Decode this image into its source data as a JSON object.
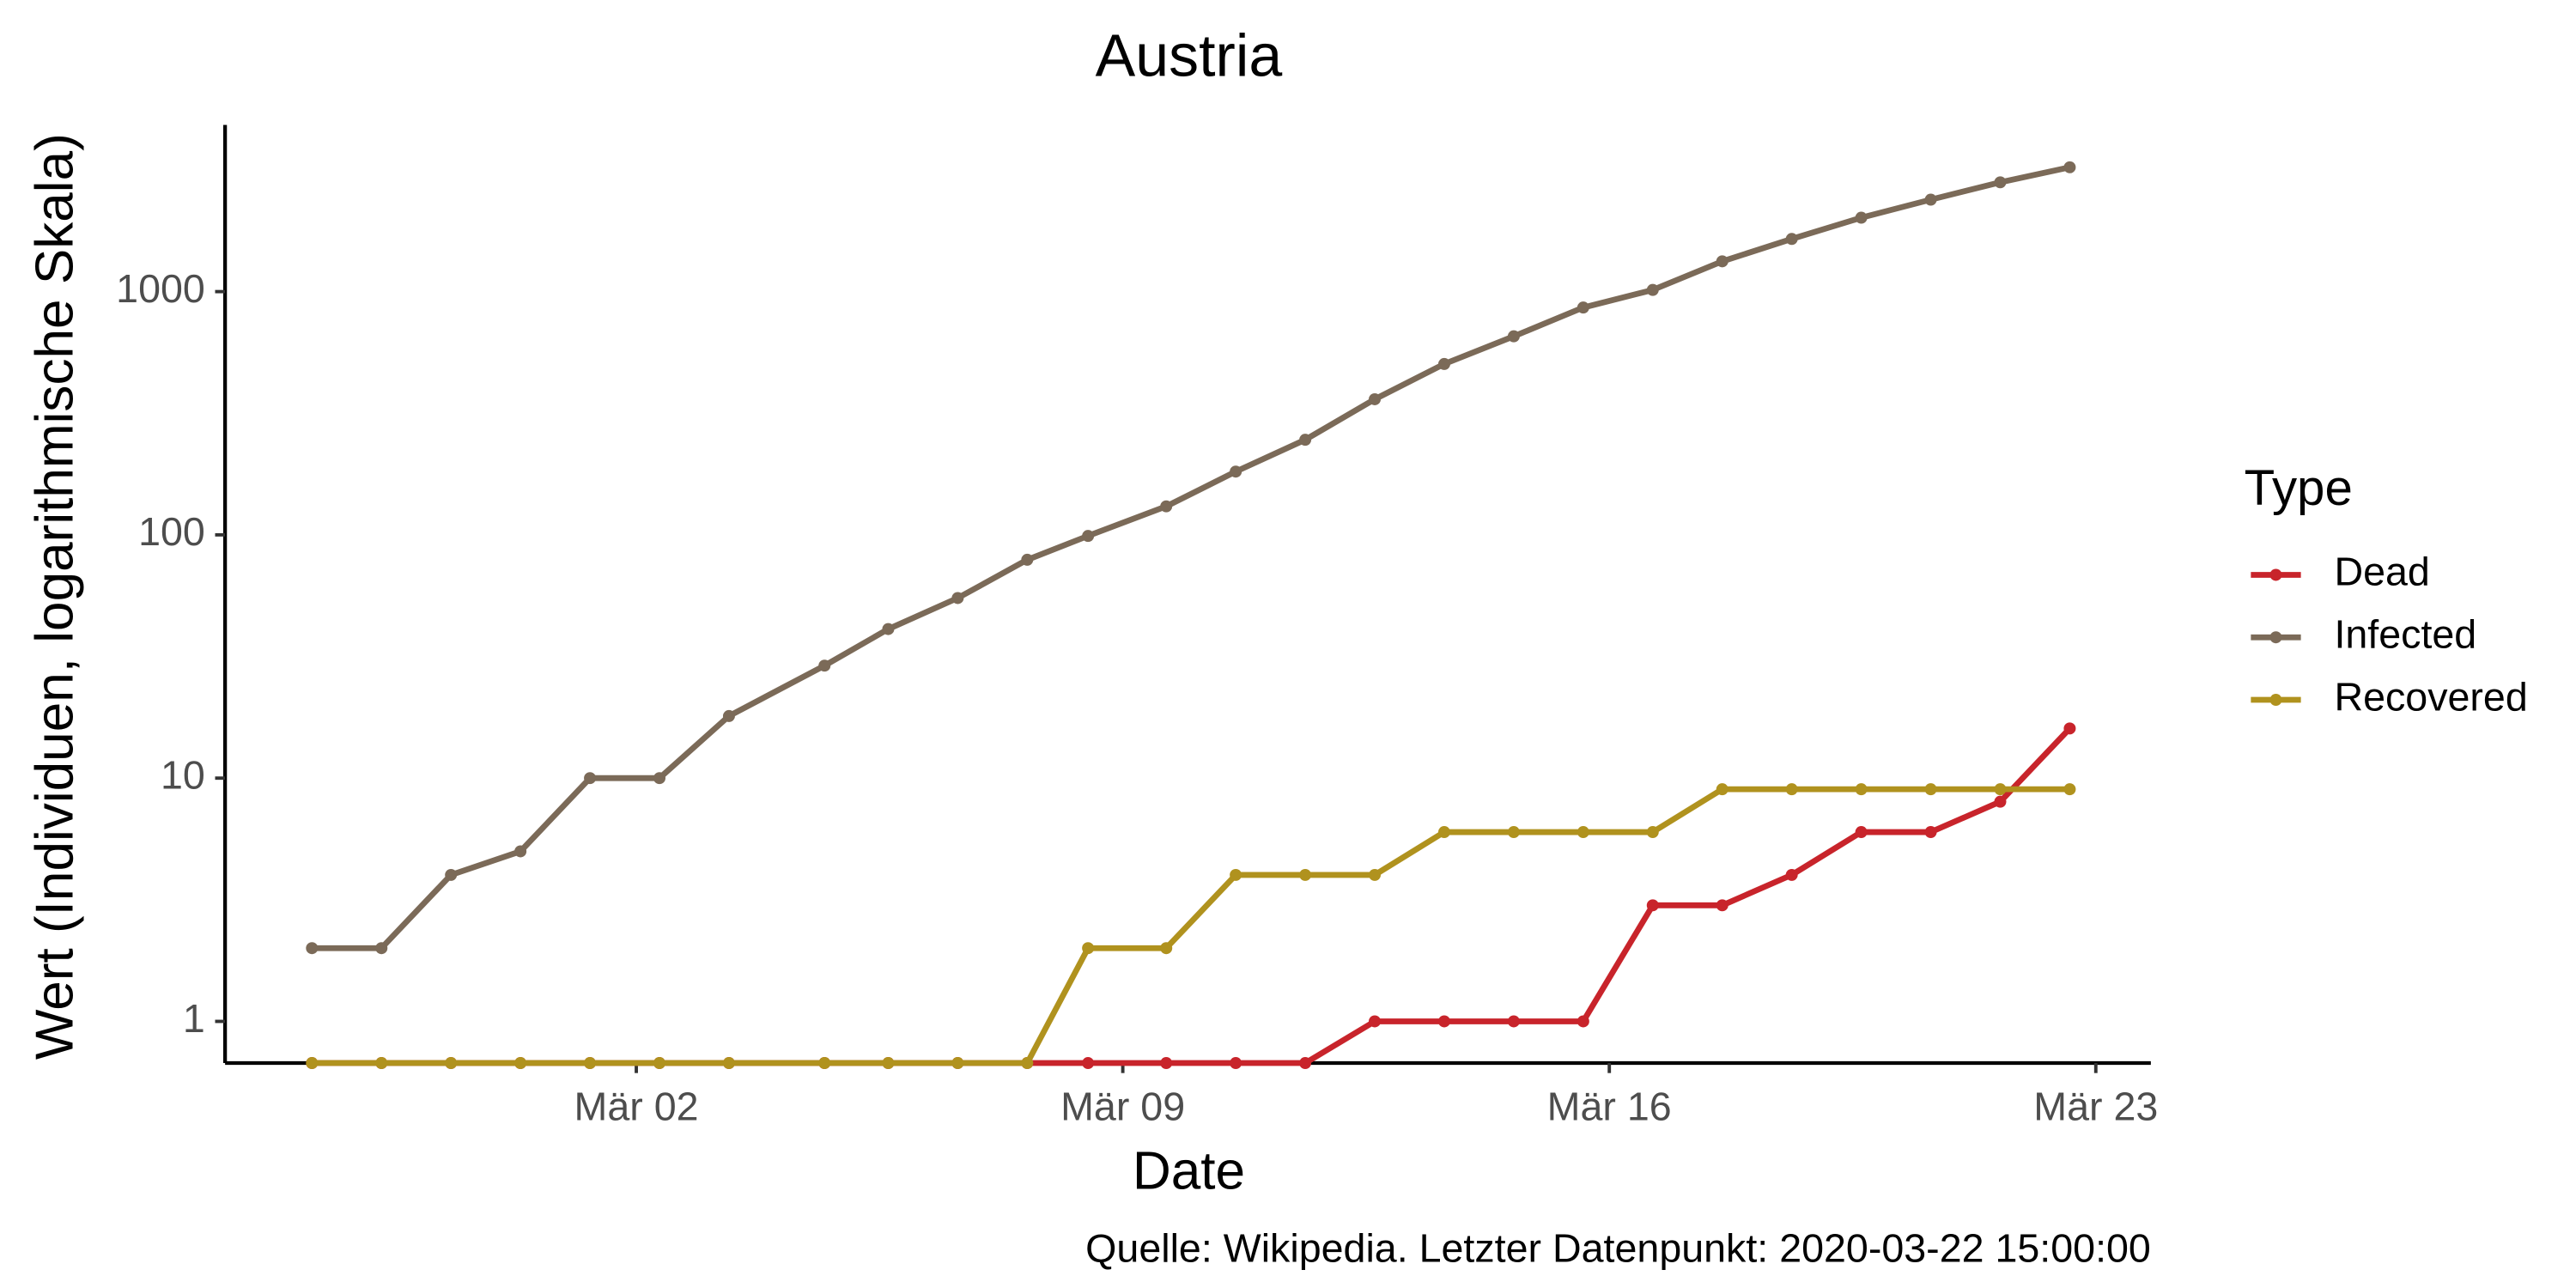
{
  "chart_data": {
    "type": "line",
    "title": "Austria",
    "x_label": "Date",
    "y_label": "Wert (Individuen, logarithmische Skala)",
    "caption": "Quelle: Wikipedia. Letzter Datenpunkt: 2020-03-22 15:00:00",
    "legend_title": "Type",
    "legend_position": "right",
    "log_y": true,
    "grid": false,
    "x": [
      "2020-02-26 08:00",
      "2020-02-27 08:00",
      "2020-02-28 08:00",
      "2020-02-29 08:00",
      "2020-03-01 08:00",
      "2020-03-02 08:00",
      "2020-03-03 08:00",
      "2020-03-04 17:00",
      "2020-03-05 15:00",
      "2020-03-06 15:00",
      "2020-03-07 15:00",
      "2020-03-08 12:00",
      "2020-03-09 15:00",
      "2020-03-10 15:00",
      "2020-03-11 15:00",
      "2020-03-12 15:00",
      "2020-03-13 15:00",
      "2020-03-14 15:00",
      "2020-03-15 15:00",
      "2020-03-16 15:00",
      "2020-03-17 15:00",
      "2020-03-18 15:00",
      "2020-03-19 15:00",
      "2020-03-20 15:00",
      "2020-03-21 15:00",
      "2020-03-22 15:00"
    ],
    "series": [
      {
        "name": "Dead",
        "color": "#c8242b",
        "values": [
          0,
          0,
          0,
          0,
          0,
          0,
          0,
          0,
          0,
          0,
          0,
          0,
          0,
          0,
          0,
          1,
          1,
          1,
          1,
          3,
          3,
          4,
          6,
          6,
          8,
          16
        ]
      },
      {
        "name": "Infected",
        "color": "#7b6a58",
        "values": [
          2,
          2,
          4,
          5,
          10,
          10,
          18,
          29,
          41,
          55,
          79,
          99,
          131,
          182,
          246,
          361,
          504,
          655,
          860,
          1016,
          1332,
          1646,
          2013,
          2388,
          2814,
          3244
        ]
      },
      {
        "name": "Recovered",
        "color": "#b0921e",
        "values": [
          0,
          0,
          0,
          0,
          0,
          0,
          0,
          0,
          0,
          0,
          0,
          2,
          2,
          4,
          4,
          4,
          6,
          6,
          6,
          6,
          9,
          9,
          9,
          9,
          9,
          9
        ]
      }
    ],
    "xlim": [
      "2020-02-25 02:00",
      "2020-03-23 19:00"
    ],
    "xticks": [
      {
        "value": "2020-03-02",
        "label": "Mär 02"
      },
      {
        "value": "2020-03-09",
        "label": "Mär 09"
      },
      {
        "value": "2020-03-16",
        "label": "Mär 16"
      },
      {
        "value": "2020-03-23",
        "label": "Mär 23"
      }
    ],
    "ylim": [
      0.674,
      4842
    ],
    "yticks": [
      1,
      10,
      100,
      1000
    ]
  }
}
